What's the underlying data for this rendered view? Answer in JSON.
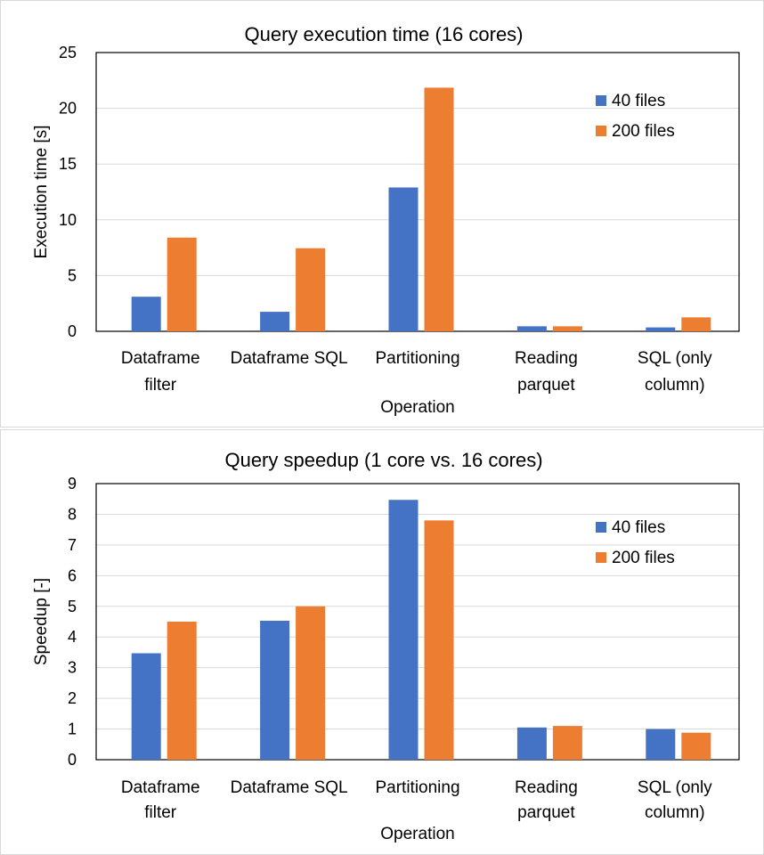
{
  "colors": {
    "series_40": "#4472C4",
    "series_200": "#ED7D31",
    "gridline": "#d9d9d9",
    "axis": "#000000",
    "panel_border": "#d9d9d9"
  },
  "chart_data": [
    {
      "type": "bar",
      "title": "Query execution time (16 cores)",
      "xlabel": "Operation",
      "ylabel": "Execution time [s]",
      "categories": [
        [
          "Dataframe",
          "filter"
        ],
        [
          "Dataframe SQL"
        ],
        [
          "Partitioning"
        ],
        [
          "Reading",
          "parquet"
        ],
        [
          "SQL (only",
          "column)"
        ]
      ],
      "series": [
        {
          "name": "40 files",
          "color": "#4472C4",
          "values": [
            3.1,
            1.75,
            12.9,
            0.45,
            0.35
          ]
        },
        {
          "name": "200 files",
          "color": "#ED7D31",
          "values": [
            8.4,
            7.45,
            21.85,
            0.45,
            1.25
          ]
        }
      ],
      "ylim": [
        0,
        25
      ],
      "yticks": [
        0,
        5,
        10,
        15,
        20,
        25
      ],
      "grid": true,
      "legend_position": "right"
    },
    {
      "type": "bar",
      "title": "Query speedup (1 core vs. 16 cores)",
      "xlabel": "Operation",
      "ylabel": "Speedup [-]",
      "categories": [
        [
          "Dataframe",
          "filter"
        ],
        [
          "Dataframe SQL"
        ],
        [
          "Partitioning"
        ],
        [
          "Reading",
          "parquet"
        ],
        [
          "SQL (only",
          "column)"
        ]
      ],
      "series": [
        {
          "name": "40 files",
          "color": "#4472C4",
          "values": [
            3.47,
            4.53,
            8.47,
            1.05,
            1.0
          ]
        },
        {
          "name": "200 files",
          "color": "#ED7D31",
          "values": [
            4.5,
            5.0,
            7.8,
            1.1,
            0.88
          ]
        }
      ],
      "ylim": [
        0,
        9
      ],
      "yticks": [
        0,
        1,
        2,
        3,
        4,
        5,
        6,
        7,
        8,
        9
      ],
      "grid": true,
      "legend_position": "right"
    }
  ]
}
